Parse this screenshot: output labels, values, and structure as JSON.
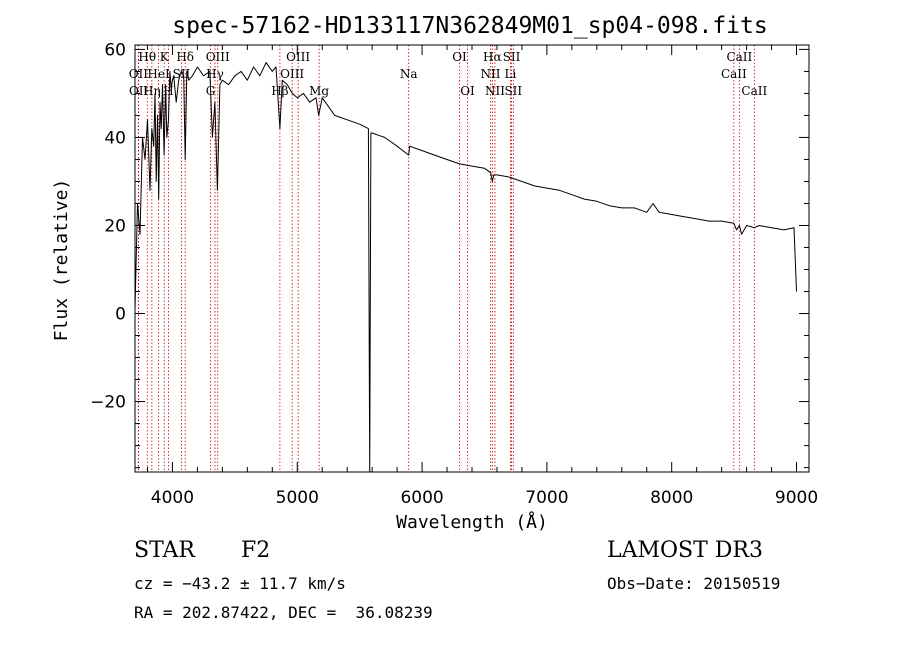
{
  "chart_data": {
    "type": "line",
    "title": "spec-57162-HD133117N362849M01_sp04-098.fits",
    "xlabel": "Wavelength (Å)",
    "ylabel": "Flux (relative)",
    "xlim": [
      3700,
      9100
    ],
    "ylim": [
      -36,
      61
    ],
    "xticks": [
      4000,
      5000,
      6000,
      7000,
      8000,
      9000
    ],
    "yticks": [
      -20,
      0,
      20,
      40,
      60
    ],
    "series": [
      {
        "name": "flux",
        "x": [
          3700,
          3720,
          3740,
          3760,
          3780,
          3800,
          3820,
          3835,
          3850,
          3860,
          3870,
          3880,
          3890,
          3900,
          3910,
          3920,
          3933,
          3945,
          3955,
          3968,
          3980,
          3990,
          4000,
          4010,
          4030,
          4050,
          4070,
          4090,
          4102,
          4115,
          4130,
          4160,
          4200,
          4250,
          4300,
          4320,
          4340,
          4360,
          4380,
          4400,
          4450,
          4500,
          4550,
          4600,
          4650,
          4700,
          4750,
          4800,
          4830,
          4861,
          4880,
          4920,
          4960,
          5000,
          5050,
          5100,
          5150,
          5172,
          5200,
          5250,
          5300,
          5400,
          5500,
          5570,
          5580,
          5590,
          5600,
          5700,
          5800,
          5893,
          5900,
          6000,
          6100,
          6200,
          6300,
          6400,
          6500,
          6550,
          6563,
          6575,
          6600,
          6700,
          6800,
          6900,
          7000,
          7100,
          7200,
          7300,
          7400,
          7500,
          7600,
          7700,
          7800,
          7850,
          7900,
          8000,
          8100,
          8200,
          8300,
          8400,
          8498,
          8520,
          8542,
          8560,
          8600,
          8662,
          8700,
          8800,
          8900,
          8980,
          9000
        ],
        "y": [
          1,
          25,
          18,
          40,
          35,
          44,
          28,
          42,
          38,
          50,
          30,
          45,
          26,
          48,
          42,
          52,
          36,
          52,
          40,
          44,
          55,
          51,
          53,
          54,
          48,
          53,
          55,
          54,
          35,
          55,
          53,
          54,
          56,
          54,
          55,
          40,
          48,
          28,
          52,
          53,
          52,
          54,
          55,
          53,
          56,
          54,
          57,
          55,
          56,
          42,
          53,
          52,
          50,
          49,
          50,
          48,
          49,
          45,
          49,
          47,
          45,
          44,
          43,
          42,
          -36,
          41,
          41,
          40,
          38,
          36,
          38,
          37,
          36,
          35,
          34,
          33.5,
          33,
          32,
          30,
          31.5,
          31.5,
          31,
          30,
          29,
          28.5,
          28,
          27,
          26,
          25.5,
          24.5,
          24,
          24,
          23,
          25,
          23,
          22.5,
          22,
          21.5,
          21,
          21,
          20.5,
          19,
          20,
          18,
          20,
          19.5,
          20,
          19.5,
          19,
          19.5,
          5
        ]
      }
    ],
    "line_markers": [
      {
        "label": "Hθ",
        "wavelength": 3798,
        "row": 1
      },
      {
        "label": "OII",
        "wavelength": 3727,
        "row": 2
      },
      {
        "label": "OII",
        "wavelength": 3729,
        "row": 3
      },
      {
        "label": "K",
        "wavelength": 3934,
        "row": 1
      },
      {
        "label": "HeI",
        "wavelength": 3889,
        "row": 2
      },
      {
        "label": "Hη",
        "wavelength": 3835,
        "row": 3
      },
      {
        "label": "H",
        "wavelength": 3968,
        "row": 3
      },
      {
        "label": "Hδ",
        "wavelength": 4102,
        "row": 1
      },
      {
        "label": "SII",
        "wavelength": 4072,
        "row": 2
      },
      {
        "label": "OIII",
        "wavelength": 4363,
        "row": 1
      },
      {
        "label": "Hγ",
        "wavelength": 4341,
        "row": 2
      },
      {
        "label": "G",
        "wavelength": 4305,
        "row": 3
      },
      {
        "label": "OIII",
        "wavelength": 5007,
        "row": 1
      },
      {
        "label": "OIII",
        "wavelength": 4959,
        "row": 2
      },
      {
        "label": "Hβ",
        "wavelength": 4861,
        "row": 3
      },
      {
        "label": "Mg",
        "wavelength": 5175,
        "row": 3
      },
      {
        "label": "Na",
        "wavelength": 5893,
        "row": 2
      },
      {
        "label": "OI",
        "wavelength": 6300,
        "row": 1
      },
      {
        "label": "OI",
        "wavelength": 6364,
        "row": 3
      },
      {
        "label": "Hα",
        "wavelength": 6563,
        "row": 1
      },
      {
        "label": "NII",
        "wavelength": 6548,
        "row": 2
      },
      {
        "label": "NII",
        "wavelength": 6584,
        "row": 3
      },
      {
        "label": "SII",
        "wavelength": 6717,
        "row": 1
      },
      {
        "label": "Li",
        "wavelength": 6708,
        "row": 2
      },
      {
        "label": "SII",
        "wavelength": 6731,
        "row": 3
      },
      {
        "label": "CaII",
        "wavelength": 8542,
        "row": 1
      },
      {
        "label": "CaII",
        "wavelength": 8498,
        "row": 2
      },
      {
        "label": "CaII",
        "wavelength": 8662,
        "row": 3
      }
    ],
    "marker_color": "#cc0000"
  },
  "info": {
    "object_class": "STAR",
    "subclass": "F2",
    "survey": "LAMOST DR3",
    "cz": "cz = −43.2 ± 11.7 km/s",
    "obs_date": "Obs−Date: 20150519",
    "coords": "RA = 202.87422, DEC =  36.08239"
  }
}
